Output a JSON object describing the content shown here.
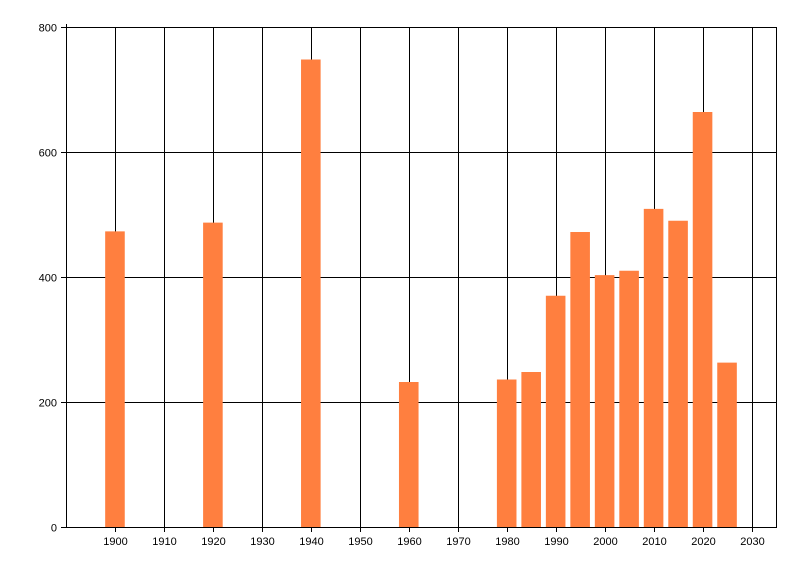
{
  "chart_data": {
    "type": "bar",
    "title": "",
    "xlabel": "",
    "ylabel": "",
    "x": [
      1900,
      1920,
      1940,
      1960,
      1980,
      1985,
      1990,
      1995,
      2000,
      2005,
      2010,
      2015,
      2020,
      2025
    ],
    "values": [
      473,
      487,
      748,
      232,
      236,
      248,
      370,
      472,
      403,
      410,
      509,
      490,
      664,
      263
    ],
    "xlim": [
      1890,
      2035
    ],
    "ylim": [
      0,
      800
    ],
    "x_ticks": [
      1900,
      1910,
      1920,
      1930,
      1940,
      1950,
      1960,
      1970,
      1980,
      1990,
      2000,
      2010,
      2020,
      2030
    ],
    "y_ticks": [
      0,
      200,
      400,
      600,
      800
    ],
    "grid": true,
    "legend": "none",
    "bar_color": "#FF7F3F",
    "grid_color": "#000000"
  }
}
